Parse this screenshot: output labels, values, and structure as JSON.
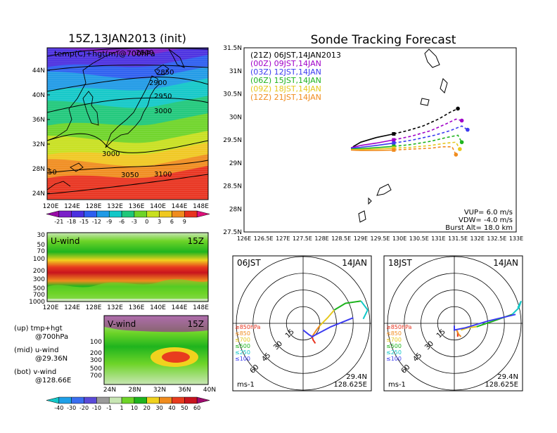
{
  "left": {
    "title": "15Z,13JAN2013 (init)",
    "map_label": "temp(C)+hgt(m)@700hPa",
    "lat_labels": [
      "44N",
      "40N",
      "36N",
      "32N",
      "28N",
      "24N"
    ],
    "lon_labels": [
      "120E",
      "124E",
      "128E",
      "132E",
      "136E",
      "140E",
      "144E",
      "148E"
    ],
    "contour_labels": [
      "2800",
      "2850",
      "2900",
      "2950",
      "3000",
      "3000",
      "3050",
      "3100",
      "50"
    ],
    "temp_colorbar": {
      "labels": [
        "-21",
        "-18",
        "-15",
        "-12",
        "-9",
        "-6",
        "-3",
        "0",
        "3",
        "6",
        "9"
      ],
      "colors": [
        "#9a0aa8",
        "#7a1fc8",
        "#4a2fe0",
        "#2c5ef0",
        "#1f9ae6",
        "#12c8c8",
        "#1fc87a",
        "#6ed428",
        "#c8e01e",
        "#f0c820",
        "#f08c1e",
        "#e8321e",
        "#e0107a"
      ]
    },
    "uwind": {
      "label": "U-wind",
      "time": "15Z",
      "pressure_labels": [
        "30",
        "50",
        "70",
        "100",
        "200",
        "300",
        "500",
        "700",
        "1000"
      ],
      "lon_labels": [
        "120E",
        "124E",
        "128E",
        "132E",
        "136E",
        "140E",
        "144E",
        "148E"
      ]
    },
    "vwind": {
      "label": "V-wind",
      "time": "15Z",
      "pressure_labels": [
        "100",
        "200",
        "300",
        "500",
        "700"
      ],
      "lat_labels": [
        "24N",
        "28N",
        "32N",
        "36N",
        "40N"
      ]
    },
    "notes": [
      "(up) tmp+hgt",
      "@700hPa",
      "(mid) u-wind",
      "@29.36N",
      "(bot) v-wind",
      "@128.66E"
    ],
    "wind_colorbar": {
      "labels": [
        "-40",
        "-30",
        "-20",
        "-10",
        "-1",
        "1",
        "10",
        "20",
        "30",
        "40",
        "50",
        "60"
      ],
      "colors": [
        "#12c8c8",
        "#1fa0e8",
        "#3a6ef0",
        "#5a4ad8",
        "#9a9a9a",
        "#c8e6b4",
        "#6ed428",
        "#1fb41e",
        "#f0d21e",
        "#f08c1e",
        "#e83c1e",
        "#c8141e",
        "#a00a6e"
      ]
    }
  },
  "right": {
    "title": "Sonde Tracking Forecast",
    "legend": [
      {
        "text": "(21Z)  06JST,14JAN2013",
        "color": "#000000"
      },
      {
        "text": "(00Z)  09JST,14JAN",
        "color": "#a000c8"
      },
      {
        "text": "(03Z)  12JST,14JAN",
        "color": "#3c3cf0"
      },
      {
        "text": "(06Z)  15JST,14JAN",
        "color": "#1eb41e"
      },
      {
        "text": "(09Z)  18JST,14JAN",
        "color": "#e6c81e"
      },
      {
        "text": "(12Z)  21JST,14JAN",
        "color": "#f08c1e"
      }
    ],
    "lat_labels": [
      "31.5N",
      "31N",
      "30.5N",
      "30N",
      "29.5N",
      "29N",
      "28.5N",
      "28N",
      "27.5N"
    ],
    "lon_labels": [
      "126E",
      "126.5E",
      "127E",
      "127.5E",
      "128E",
      "128.5E",
      "129E",
      "129.5E",
      "130E",
      "130.5E",
      "131E",
      "131.5E",
      "132E",
      "132.5E",
      "133E"
    ],
    "params": [
      "VUP=  6.0  m/s",
      "VDW=  -4.0  m/s",
      "Burst Alt=  18.0  km"
    ],
    "hodo_left": {
      "time": "06JST",
      "date": "14JAN"
    },
    "hodo_right": {
      "time": "18JST",
      "date": "14JAN"
    },
    "hodo_common": {
      "ring_labels": [
        "15",
        "30",
        "45",
        "60"
      ],
      "pressure_legend": [
        {
          "text": "≥850hPa",
          "color": "#e8321e"
        },
        {
          "text": "≤850",
          "color": "#f08c1e"
        },
        {
          "text": "≤700",
          "color": "#e6c81e"
        },
        {
          "text": "≤500",
          "color": "#1eb41e"
        },
        {
          "text": "≤250",
          "color": "#12c8c8"
        },
        {
          "text": "≤100",
          "color": "#3c3cf0"
        }
      ],
      "units": "ms-1",
      "location_lat": "29.4N",
      "location_lon": "128.625E"
    }
  },
  "chart_data": [
    {
      "type": "heatmap",
      "title": "15Z,13JAN2013 (init)",
      "subtitle": "temp(C)+hgt(m)@700hPa",
      "xlim": [
        120,
        150
      ],
      "ylim": [
        22,
        48
      ],
      "x_ticks": [
        "120E",
        "124E",
        "128E",
        "132E",
        "136E",
        "140E",
        "144E",
        "148E"
      ],
      "y_ticks": [
        "24N",
        "28N",
        "32N",
        "36N",
        "40N",
        "44N"
      ],
      "temperature_bands": [
        {
          "lat": 46,
          "value": -18
        },
        {
          "lat": 44,
          "value": -15
        },
        {
          "lat": 42,
          "value": -12
        },
        {
          "lat": 40,
          "value": -9
        },
        {
          "lat": 37,
          "value": -6
        },
        {
          "lat": 34,
          "value": -3
        },
        {
          "lat": 31,
          "value": 0
        },
        {
          "lat": 29,
          "value": 3
        },
        {
          "lat": 27,
          "value": 6
        },
        {
          "lat": 25,
          "value": 9
        }
      ],
      "height_contours": [
        2800,
        2850,
        2900,
        2950,
        3000,
        3050,
        3100
      ]
    },
    {
      "type": "line",
      "title": "Sonde Tracking Forecast",
      "xlim": [
        126,
        133
      ],
      "ylim": [
        27.5,
        31.5
      ],
      "series": [
        {
          "name": "(21Z)  06JST,14JAN2013",
          "color": "#000000",
          "x": [
            128.8,
            129.0,
            129.4,
            129.85,
            130.2,
            130.6,
            131.0,
            131.3,
            131.5
          ],
          "y": [
            29.35,
            29.45,
            29.55,
            29.63,
            29.7,
            29.8,
            29.95,
            30.1,
            30.18
          ]
        },
        {
          "name": "(00Z)  09JST,14JAN",
          "color": "#a000c8",
          "x": [
            128.75,
            129.0,
            129.4,
            129.85,
            130.3,
            130.8,
            131.2,
            131.45,
            131.6
          ],
          "y": [
            29.33,
            29.38,
            29.43,
            29.5,
            29.58,
            29.7,
            29.85,
            29.95,
            29.92
          ]
        },
        {
          "name": "(03Z)  12JST,14JAN",
          "color": "#3c3cf0",
          "x": [
            128.75,
            129.0,
            129.4,
            129.85,
            130.35,
            130.9,
            131.3,
            131.6,
            131.75
          ],
          "y": [
            29.32,
            29.34,
            29.38,
            29.43,
            29.5,
            29.6,
            29.7,
            29.8,
            29.72
          ]
        },
        {
          "name": "(06Z)  15JST,14JAN",
          "color": "#1eb41e",
          "x": [
            128.75,
            129.0,
            129.4,
            129.85,
            130.3,
            130.8,
            131.2,
            131.5,
            131.6
          ],
          "y": [
            29.3,
            29.31,
            29.33,
            29.36,
            29.4,
            29.47,
            29.55,
            29.6,
            29.45
          ]
        },
        {
          "name": "(09Z)  18JST,14JAN",
          "color": "#e6c81e",
          "x": [
            128.75,
            129.0,
            129.4,
            129.85,
            130.3,
            130.8,
            131.2,
            131.45,
            131.55
          ],
          "y": [
            29.29,
            29.29,
            29.3,
            29.32,
            29.34,
            29.38,
            29.43,
            29.45,
            29.3
          ]
        },
        {
          "name": "(12Z)  21JST,14JAN",
          "color": "#f08c1e",
          "x": [
            128.75,
            129.0,
            129.4,
            129.85,
            130.3,
            130.8,
            131.1,
            131.35,
            131.45
          ],
          "y": [
            29.28,
            29.27,
            29.27,
            29.28,
            29.3,
            29.32,
            29.35,
            29.35,
            29.18
          ]
        }
      ]
    },
    {
      "type": "line",
      "title": "06JST 14JAN hodograph",
      "xlim": [
        -60,
        60
      ],
      "ylim": [
        -60,
        60
      ],
      "series": [
        {
          "name": "≥850hPa",
          "color": "#e8321e",
          "x": [
            8,
            9,
            11
          ],
          "y": [
            -12,
            -15,
            -18
          ]
        },
        {
          "name": "≤850",
          "color": "#f08c1e",
          "x": [
            8,
            12,
            15
          ],
          "y": [
            -12,
            -6,
            -2
          ]
        },
        {
          "name": "≤700",
          "color": "#e6c81e",
          "x": [
            15,
            22,
            28
          ],
          "y": [
            -2,
            5,
            12
          ]
        },
        {
          "name": "≤500",
          "color": "#1eb41e",
          "x": [
            28,
            38,
            52
          ],
          "y": [
            12,
            18,
            20
          ]
        },
        {
          "name": "≤250",
          "color": "#12c8c8",
          "x": [
            52,
            58,
            54
          ],
          "y": [
            20,
            12,
            4
          ]
        },
        {
          "name": "≤100",
          "color": "#3c3cf0",
          "x": [
            0,
            5,
            8,
            25,
            45
          ],
          "y": [
            -6,
            -10,
            -12,
            -3,
            5
          ]
        }
      ]
    },
    {
      "type": "line",
      "title": "18JST 14JAN hodograph",
      "xlim": [
        -60,
        60
      ],
      "ylim": [
        -60,
        60
      ],
      "series": [
        {
          "name": "≥850hPa",
          "color": "#e8321e",
          "x": [
            3,
            3
          ],
          "y": [
            -8,
            -12
          ]
        },
        {
          "name": "≤850",
          "color": "#f08c1e",
          "x": [
            2,
            4,
            6
          ],
          "y": [
            -6,
            -10,
            -12
          ]
        },
        {
          "name": "≤700",
          "color": "#e6c81e",
          "x": [
            6,
            12,
            20
          ],
          "y": [
            -6,
            -4,
            -3
          ]
        },
        {
          "name": "≤500",
          "color": "#1eb41e",
          "x": [
            20,
            35,
            52
          ],
          "y": [
            -3,
            2,
            8
          ]
        },
        {
          "name": "≤250",
          "color": "#12c8c8",
          "x": [
            52,
            58,
            60,
            57
          ],
          "y": [
            8,
            14,
            20,
            14
          ]
        },
        {
          "name": "≤100",
          "color": "#3c3cf0",
          "x": [
            0,
            0,
            10,
            30,
            55
          ],
          "y": [
            -2,
            -6,
            -4,
            2,
            8
          ]
        }
      ]
    }
  ]
}
